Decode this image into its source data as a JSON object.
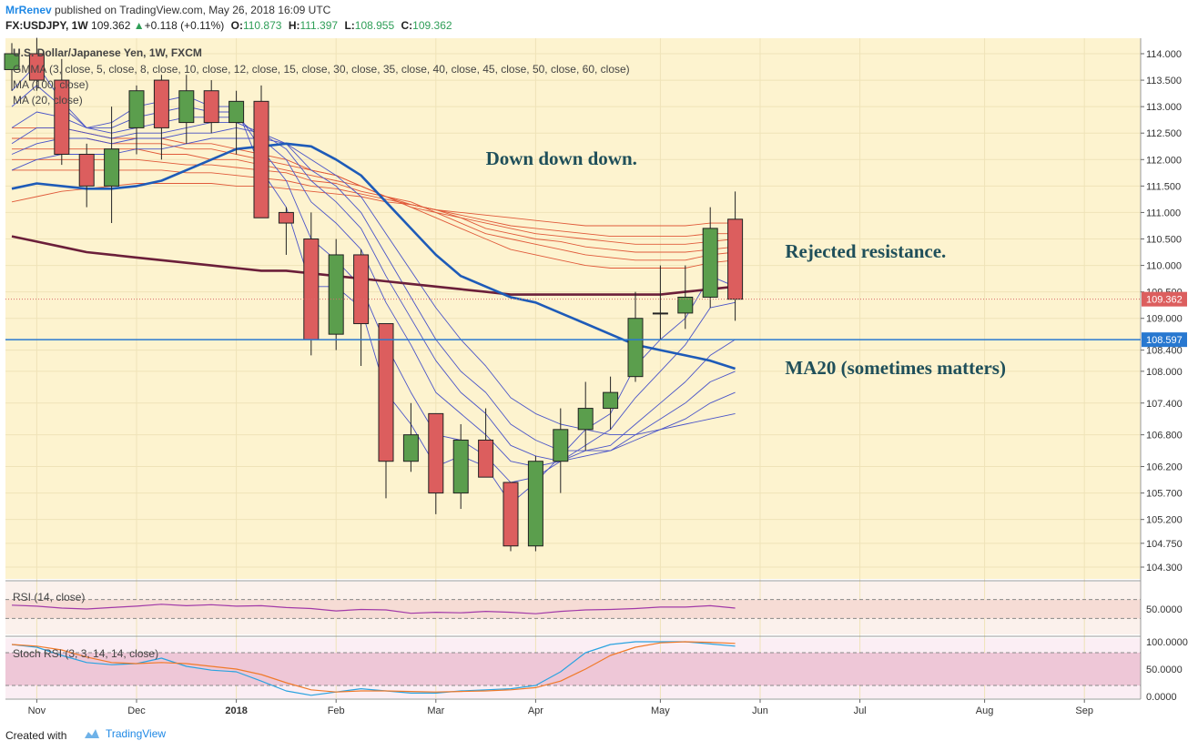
{
  "header": {
    "author": "MrRenev",
    "published_text": "published on TradingView.com, May 26, 2018 16:09 UTC",
    "symbol": "FX:USDJPY, 1W",
    "last": "109.362",
    "change": "+0.118 (+0.11%)",
    "o_label": "O:",
    "o_value": "110.873",
    "h_label": "H:",
    "h_value": "111.397",
    "l_label": "L:",
    "l_value": "108.955",
    "c_label": "C:",
    "c_value": "109.362"
  },
  "footer": {
    "created_with": "Created with",
    "brand": "TradingView"
  },
  "colors": {
    "main_bg": "#fdf3cf",
    "rsi_bg": "#f6dcd5",
    "stoch_bg": "#eec7d7",
    "up_candle": "#5b9e4d",
    "down_candle": "#dc5e5e",
    "ma20": "#1e5bb8",
    "ma100": "#6b1f3a",
    "gmma_short": "#4a54c8",
    "gmma_long": "#e05a3a",
    "rsi_line": "#a23aa8",
    "stoch_k": "#2aa3e0",
    "stoch_d": "#f07a2a",
    "annotation": "#1f4f5a",
    "hline": "#2878d0"
  },
  "chart_data": {
    "type": "candlestick",
    "title": "U.S. Dollar/Japanese Yen, 1W, FXCM",
    "indicator_legend": [
      "GMMA (3, close, 5, close, 8, close, 10, close, 12, close, 15, close, 30, close, 35, close, 40, close, 45, close, 50, close, 60, close)",
      "MA (100, close)",
      "MA (20, close)"
    ],
    "price_axis": [
      "114.000",
      "113.500",
      "113.000",
      "112.500",
      "112.000",
      "111.500",
      "111.000",
      "110.500",
      "110.000",
      "109.500",
      "109.000",
      "108.400",
      "108.000",
      "107.400",
      "106.800",
      "106.200",
      "105.700",
      "105.200",
      "104.750",
      "104.300"
    ],
    "ylim": [
      104.3,
      114.0
    ],
    "x_ticks": [
      {
        "label": "Nov",
        "i": 1
      },
      {
        "label": "Dec",
        "i": 5
      },
      {
        "label": "2018",
        "i": 9
      },
      {
        "label": "Feb",
        "i": 13
      },
      {
        "label": "Mar",
        "i": 17
      },
      {
        "label": "Apr",
        "i": 21
      },
      {
        "label": "May",
        "i": 26
      },
      {
        "label": "Jun",
        "i": 30
      },
      {
        "label": "Jul",
        "i": 34
      },
      {
        "label": "Aug",
        "i": 39
      },
      {
        "label": "Sep",
        "i": 43
      }
    ],
    "candles": [
      {
        "o": 113.7,
        "h": 114.2,
        "l": 113.3,
        "c": 114.0
      },
      {
        "o": 114.0,
        "h": 114.3,
        "l": 113.3,
        "c": 113.5
      },
      {
        "o": 113.5,
        "h": 113.9,
        "l": 111.9,
        "c": 112.1
      },
      {
        "o": 112.1,
        "h": 112.3,
        "l": 111.1,
        "c": 111.5
      },
      {
        "o": 111.5,
        "h": 113.0,
        "l": 110.8,
        "c": 112.2
      },
      {
        "o": 112.6,
        "h": 113.4,
        "l": 112.1,
        "c": 113.3
      },
      {
        "o": 113.5,
        "h": 113.6,
        "l": 112.0,
        "c": 112.6
      },
      {
        "o": 112.7,
        "h": 113.6,
        "l": 112.3,
        "c": 113.3
      },
      {
        "o": 113.3,
        "h": 113.5,
        "l": 112.5,
        "c": 112.7
      },
      {
        "o": 112.7,
        "h": 113.3,
        "l": 112.1,
        "c": 113.1
      },
      {
        "o": 113.1,
        "h": 113.4,
        "l": 110.9,
        "c": 110.9
      },
      {
        "o": 111.0,
        "h": 111.1,
        "l": 110.2,
        "c": 110.8
      },
      {
        "o": 110.5,
        "h": 111.0,
        "l": 108.3,
        "c": 108.6
      },
      {
        "o": 108.7,
        "h": 110.5,
        "l": 108.4,
        "c": 110.2
      },
      {
        "o": 110.2,
        "h": 110.3,
        "l": 108.1,
        "c": 108.9
      },
      {
        "o": 108.9,
        "h": 108.9,
        "l": 105.6,
        "c": 106.3
      },
      {
        "o": 106.3,
        "h": 107.4,
        "l": 106.1,
        "c": 106.8
      },
      {
        "o": 107.2,
        "h": 107.2,
        "l": 105.3,
        "c": 105.7
      },
      {
        "o": 105.7,
        "h": 107.0,
        "l": 105.4,
        "c": 106.7
      },
      {
        "o": 106.7,
        "h": 107.3,
        "l": 106.0,
        "c": 106.0
      },
      {
        "o": 105.9,
        "h": 105.9,
        "l": 104.6,
        "c": 104.7
      },
      {
        "o": 104.7,
        "h": 106.4,
        "l": 104.6,
        "c": 106.3
      },
      {
        "o": 106.3,
        "h": 107.3,
        "l": 105.7,
        "c": 106.9
      },
      {
        "o": 106.9,
        "h": 107.8,
        "l": 106.5,
        "c": 107.3
      },
      {
        "o": 107.3,
        "h": 107.9,
        "l": 106.9,
        "c": 107.6
      },
      {
        "o": 107.9,
        "h": 109.5,
        "l": 107.8,
        "c": 109.0
      },
      {
        "o": 109.1,
        "h": 110.0,
        "l": 108.6,
        "c": 109.1
      },
      {
        "o": 109.1,
        "h": 110.0,
        "l": 108.8,
        "c": 109.4
      },
      {
        "o": 109.4,
        "h": 111.1,
        "l": 109.2,
        "c": 110.7
      },
      {
        "o": 110.873,
        "h": 111.397,
        "l": 108.955,
        "c": 109.362
      }
    ],
    "candle_x_index_offset": 0,
    "ma20": [
      111.45,
      111.55,
      111.5,
      111.45,
      111.45,
      111.5,
      111.6,
      111.8,
      112.0,
      112.2,
      112.25,
      112.3,
      112.25,
      112.0,
      111.7,
      111.2,
      110.7,
      110.2,
      109.8,
      109.6,
      109.4,
      109.3,
      109.1,
      108.9,
      108.7,
      108.5,
      108.4,
      108.3,
      108.2,
      108.05
    ],
    "ma100": [
      110.55,
      110.45,
      110.35,
      110.25,
      110.2,
      110.15,
      110.1,
      110.05,
      110.0,
      109.95,
      109.9,
      109.9,
      109.85,
      109.8,
      109.75,
      109.7,
      109.65,
      109.6,
      109.55,
      109.5,
      109.45,
      109.45,
      109.45,
      109.45,
      109.45,
      109.45,
      109.45,
      109.5,
      109.55,
      109.6
    ],
    "gmma_short": [
      [
        113.3,
        113.8,
        113.1,
        112.6,
        112.7,
        113.0,
        113.1,
        113.2,
        113.0,
        113.0,
        111.8,
        111.1,
        109.6,
        109.6,
        109.2,
        107.6,
        107.0,
        106.2,
        106.4,
        106.2,
        105.5,
        105.9,
        106.4,
        106.9,
        107.2,
        108.1,
        108.6,
        109.0,
        109.8,
        109.6
      ],
      [
        113.0,
        113.4,
        113.0,
        112.6,
        112.6,
        112.8,
        112.9,
        113.0,
        112.9,
        112.9,
        112.2,
        111.6,
        110.5,
        110.1,
        109.6,
        108.5,
        107.6,
        106.8,
        106.7,
        106.4,
        105.9,
        106.0,
        106.3,
        106.6,
        106.9,
        107.5,
        108.0,
        108.5,
        109.2,
        109.3
      ],
      [
        112.6,
        112.9,
        112.8,
        112.6,
        112.5,
        112.6,
        112.7,
        112.8,
        112.8,
        112.8,
        112.4,
        112.0,
        111.2,
        110.8,
        110.3,
        109.3,
        108.5,
        107.6,
        107.2,
        106.8,
        106.3,
        106.2,
        106.3,
        106.5,
        106.6,
        107.0,
        107.4,
        107.8,
        108.3,
        108.6
      ],
      [
        112.3,
        112.6,
        112.6,
        112.5,
        112.4,
        112.5,
        112.5,
        112.6,
        112.7,
        112.7,
        112.5,
        112.2,
        111.6,
        111.2,
        110.7,
        109.8,
        109.0,
        108.2,
        107.6,
        107.2,
        106.6,
        106.4,
        106.3,
        106.4,
        106.5,
        106.8,
        107.1,
        107.4,
        107.8,
        108.0
      ],
      [
        112.1,
        112.3,
        112.4,
        112.4,
        112.3,
        112.4,
        112.4,
        112.5,
        112.5,
        112.6,
        112.5,
        112.3,
        111.8,
        111.5,
        111.0,
        110.2,
        109.4,
        108.6,
        108.0,
        107.6,
        107.0,
        106.7,
        106.5,
        106.5,
        106.5,
        106.7,
        106.9,
        107.1,
        107.4,
        107.6
      ],
      [
        111.8,
        112.0,
        112.1,
        112.1,
        112.1,
        112.2,
        112.2,
        112.3,
        112.4,
        112.4,
        112.4,
        112.3,
        112.0,
        111.7,
        111.3,
        110.6,
        109.9,
        109.2,
        108.6,
        108.1,
        107.5,
        107.2,
        107.0,
        106.9,
        106.8,
        106.8,
        106.9,
        107.0,
        107.1,
        107.2
      ]
    ],
    "gmma_long": [
      [
        112.6,
        112.6,
        112.6,
        112.5,
        112.4,
        112.4,
        112.4,
        112.3,
        112.3,
        112.2,
        112.1,
        112.0,
        111.8,
        111.7,
        111.5,
        111.3,
        111.1,
        110.9,
        110.7,
        110.5,
        110.3,
        110.2,
        110.1,
        110.0,
        109.95,
        109.95,
        109.95,
        109.95,
        110.05,
        110.1
      ],
      [
        112.4,
        112.4,
        112.4,
        112.4,
        112.3,
        112.3,
        112.3,
        112.2,
        112.2,
        112.1,
        112.0,
        111.9,
        111.8,
        111.7,
        111.5,
        111.3,
        111.1,
        111.0,
        110.8,
        110.6,
        110.5,
        110.4,
        110.3,
        110.2,
        110.15,
        110.1,
        110.1,
        110.1,
        110.2,
        110.25
      ],
      [
        112.2,
        112.2,
        112.2,
        112.2,
        112.2,
        112.2,
        112.1,
        112.1,
        112.0,
        112.0,
        111.9,
        111.8,
        111.7,
        111.6,
        111.5,
        111.3,
        111.2,
        111.0,
        110.9,
        110.7,
        110.6,
        110.5,
        110.45,
        110.35,
        110.3,
        110.25,
        110.25,
        110.25,
        110.3,
        110.35
      ],
      [
        112.0,
        112.0,
        112.0,
        112.0,
        112.0,
        112.0,
        111.95,
        111.9,
        111.9,
        111.85,
        111.8,
        111.75,
        111.6,
        111.55,
        111.4,
        111.3,
        111.15,
        111.05,
        110.9,
        110.8,
        110.7,
        110.6,
        110.55,
        110.5,
        110.45,
        110.4,
        110.4,
        110.4,
        110.45,
        110.5
      ],
      [
        111.8,
        111.8,
        111.8,
        111.8,
        111.8,
        111.8,
        111.8,
        111.75,
        111.75,
        111.7,
        111.65,
        111.6,
        111.5,
        111.45,
        111.35,
        111.25,
        111.15,
        111.05,
        110.95,
        110.85,
        110.75,
        110.7,
        110.65,
        110.6,
        110.55,
        110.55,
        110.55,
        110.55,
        110.6,
        110.6
      ],
      [
        111.2,
        111.3,
        111.4,
        111.45,
        111.5,
        111.55,
        111.55,
        111.55,
        111.55,
        111.5,
        111.5,
        111.45,
        111.4,
        111.35,
        111.3,
        111.2,
        111.15,
        111.05,
        111.0,
        110.95,
        110.9,
        110.85,
        110.8,
        110.75,
        110.75,
        110.75,
        110.75,
        110.75,
        110.8,
        110.8
      ]
    ],
    "rsi": {
      "label": "RSI (14, close)",
      "axis": [
        "50.0000"
      ],
      "values": [
        58,
        56,
        52,
        50,
        53,
        56,
        60,
        57,
        59,
        56,
        57,
        53,
        51,
        46,
        49,
        48,
        41,
        43,
        42,
        45,
        43,
        40,
        45,
        48,
        49,
        51,
        54,
        54,
        57,
        52
      ],
      "band": [
        30,
        70
      ],
      "ylim": [
        0,
        100
      ]
    },
    "stoch_rsi": {
      "label": "Stoch RSI (3, 3, 14, 14, close)",
      "axis": [
        "100.0000",
        "50.0000",
        "0.0000"
      ],
      "k": [
        95,
        90,
        75,
        62,
        58,
        60,
        70,
        55,
        48,
        45,
        28,
        10,
        2,
        8,
        14,
        10,
        6,
        6,
        10,
        12,
        14,
        20,
        45,
        80,
        95,
        100,
        100,
        100,
        96,
        92
      ],
      "d": [
        95,
        92,
        85,
        72,
        62,
        60,
        62,
        60,
        55,
        50,
        40,
        25,
        12,
        8,
        10,
        10,
        9,
        8,
        9,
        10,
        12,
        16,
        28,
        50,
        75,
        90,
        98,
        100,
        99,
        97
      ],
      "band": [
        20,
        80
      ],
      "ylim": [
        0,
        100
      ]
    },
    "hline_value": 108.597,
    "last_price_label": "109.362",
    "hline_label": "108.597",
    "annotations": [
      {
        "text": "Down down down.",
        "value": 111.9,
        "i": 19
      },
      {
        "text": "Rejected resistance.",
        "value": 110.15,
        "i": 31
      },
      {
        "text": "MA20 (sometimes matters)",
        "value": 107.95,
        "i": 31
      }
    ]
  }
}
